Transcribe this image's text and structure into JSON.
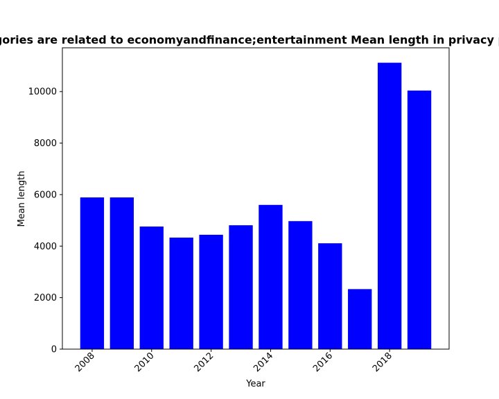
{
  "chart_data": {
    "type": "bar",
    "title": "Categories are related to economyandfinance;entertainment Mean length in privacy policies",
    "xlabel": "Year",
    "ylabel": "Mean length",
    "x": [
      2008,
      2009,
      2010,
      2011,
      2012,
      2013,
      2014,
      2015,
      2016,
      2017,
      2018,
      2019
    ],
    "values": [
      5890,
      5890,
      4760,
      4330,
      4440,
      4810,
      5600,
      4970,
      4110,
      2330,
      11120,
      10040
    ],
    "xticks": [
      "2008",
      "2010",
      "2012",
      "2014",
      "2016",
      "2018"
    ],
    "yticks": [
      "0",
      "2000",
      "4000",
      "6000",
      "8000",
      "10000"
    ],
    "xlim": [
      2007.0,
      2020.0
    ],
    "ylim": [
      0,
      11700
    ],
    "grid": false,
    "bar_color": "#0000ff"
  }
}
